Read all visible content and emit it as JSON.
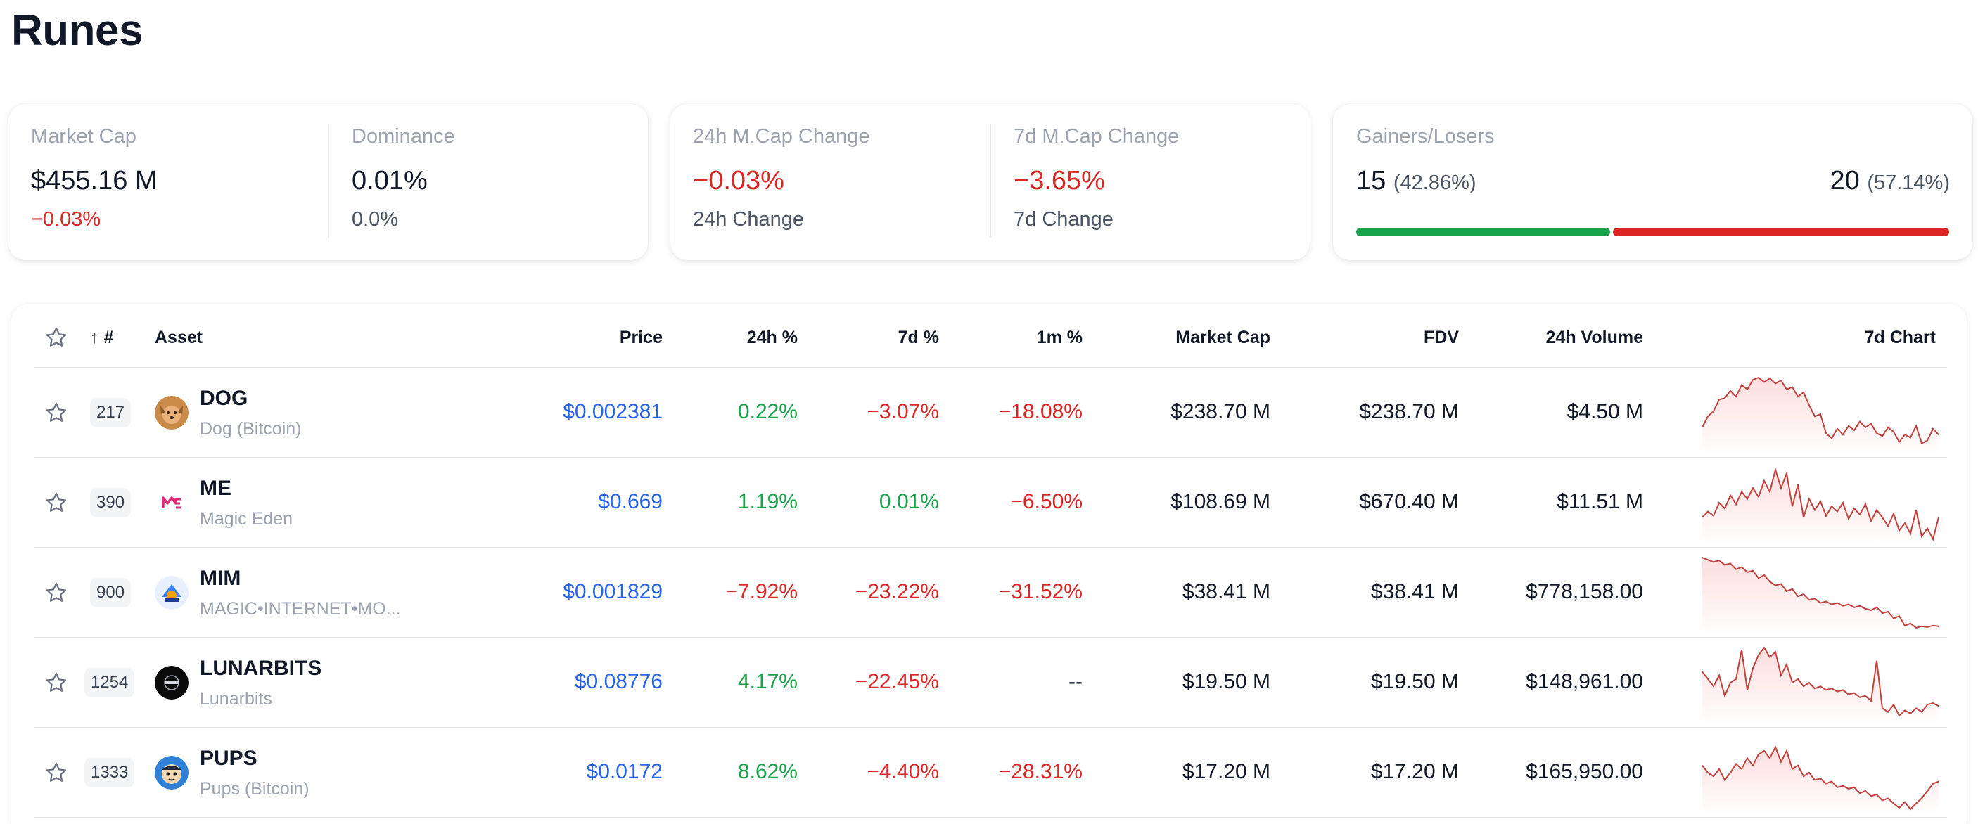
{
  "page": {
    "title": "Runes"
  },
  "stats": {
    "market_cap": {
      "label": "Market Cap",
      "value": "$455.16 M",
      "change": "−0.03%"
    },
    "dominance": {
      "label": "Dominance",
      "value": "0.01%",
      "change": "0.0%"
    },
    "change_24h": {
      "label": "24h M.Cap Change",
      "value": "−0.03%",
      "sub": "24h Change"
    },
    "change_7d": {
      "label": "7d M.Cap Change",
      "value": "−3.65%",
      "sub": "7d Change"
    },
    "gainers_losers": {
      "label": "Gainers/Losers",
      "gainers": "15",
      "gainers_pct": "(42.86%)",
      "losers": "20",
      "losers_pct": "(57.14%)",
      "gainers_fraction": 0.4286
    }
  },
  "table": {
    "headers": {
      "rank": "↑ #",
      "asset": "Asset",
      "price": "Price",
      "change_24h": "24h %",
      "change_7d": "7d %",
      "change_1m": "1m %",
      "market_cap": "Market Cap",
      "fdv": "FDV",
      "volume_24h": "24h Volume",
      "chart_7d": "7d Chart"
    },
    "rows": [
      {
        "rank": "217",
        "symbol": "DOG",
        "name": "Dog (Bitcoin)",
        "price": "$0.002381",
        "change_24h": "0.22%",
        "change_7d": "−3.07%",
        "change_1m": "−18.08%",
        "market_cap": "$238.70 M",
        "fdv": "$238.70 M",
        "volume_24h": "$4.50 M",
        "icon": "dog-icon",
        "spark": [
          0.7,
          0.55,
          0.48,
          0.32,
          0.3,
          0.2,
          0.28,
          0.12,
          0.18,
          0.05,
          0.02,
          0.08,
          0.03,
          0.1,
          0.06,
          0.18,
          0.15,
          0.28,
          0.22,
          0.4,
          0.55,
          0.52,
          0.78,
          0.85,
          0.72,
          0.8,
          0.68,
          0.74,
          0.62,
          0.7,
          0.65,
          0.78,
          0.82,
          0.7,
          0.76,
          0.9,
          0.8,
          0.84,
          0.68,
          0.92,
          0.88,
          0.72,
          0.8
        ]
      },
      {
        "rank": "390",
        "symbol": "ME",
        "name": "Magic Eden",
        "price": "$0.669",
        "change_24h": "1.19%",
        "change_7d": "0.01%",
        "change_1m": "−6.50%",
        "market_cap": "$108.69 M",
        "fdv": "$670.40 M",
        "volume_24h": "$11.51 M",
        "icon": "magic-eden-icon",
        "spark": [
          0.7,
          0.62,
          0.68,
          0.5,
          0.58,
          0.4,
          0.52,
          0.35,
          0.45,
          0.3,
          0.42,
          0.2,
          0.35,
          0.05,
          0.3,
          0.1,
          0.55,
          0.25,
          0.7,
          0.45,
          0.6,
          0.48,
          0.68,
          0.55,
          0.62,
          0.5,
          0.72,
          0.58,
          0.66,
          0.52,
          0.75,
          0.6,
          0.7,
          0.82,
          0.65,
          0.88,
          0.78,
          0.92,
          0.6,
          0.96,
          0.85,
          1.0,
          0.7
        ]
      },
      {
        "rank": "900",
        "symbol": "MIM",
        "name": "MAGIC•INTERNET•MO...",
        "price": "$0.001829",
        "change_24h": "−7.92%",
        "change_7d": "−23.22%",
        "change_1m": "−31.52%",
        "market_cap": "$38.41 M",
        "fdv": "$38.41 M",
        "volume_24h": "$778,158.00",
        "icon": "mim-icon",
        "spark": [
          0.02,
          0.05,
          0.08,
          0.06,
          0.12,
          0.1,
          0.18,
          0.15,
          0.22,
          0.2,
          0.3,
          0.26,
          0.35,
          0.4,
          0.38,
          0.48,
          0.45,
          0.55,
          0.52,
          0.6,
          0.58,
          0.64,
          0.62,
          0.66,
          0.64,
          0.68,
          0.66,
          0.7,
          0.68,
          0.72,
          0.74,
          0.7,
          0.78,
          0.76,
          0.85,
          0.82,
          0.95,
          0.92,
          0.98,
          0.96,
          0.97,
          0.95,
          0.96
        ]
      },
      {
        "rank": "1254",
        "symbol": "LUNARBITS",
        "name": "Lunarbits",
        "price": "$0.08776",
        "change_24h": "4.17%",
        "change_7d": "−22.45%",
        "change_1m": "--",
        "market_cap": "$19.50 M",
        "fdv": "$19.50 M",
        "volume_24h": "$148,961.00",
        "icon": "lunarbits-icon",
        "spark": [
          0.35,
          0.45,
          0.55,
          0.4,
          0.68,
          0.5,
          0.45,
          0.05,
          0.6,
          0.3,
          0.12,
          0.02,
          0.15,
          0.08,
          0.4,
          0.25,
          0.5,
          0.45,
          0.55,
          0.5,
          0.58,
          0.55,
          0.6,
          0.58,
          0.62,
          0.6,
          0.66,
          0.64,
          0.7,
          0.68,
          0.75,
          0.2,
          0.85,
          0.9,
          0.8,
          0.95,
          0.88,
          0.92,
          0.85,
          0.9,
          0.8,
          0.78,
          0.82
        ]
      },
      {
        "rank": "1333",
        "symbol": "PUPS",
        "name": "Pups (Bitcoin)",
        "price": "$0.0172",
        "change_24h": "8.62%",
        "change_7d": "−4.40%",
        "change_1m": "−28.31%",
        "market_cap": "$17.20 M",
        "fdv": "$17.20 M",
        "volume_24h": "$165,950.00",
        "icon": "pups-icon",
        "spark": [
          0.4,
          0.5,
          0.55,
          0.45,
          0.6,
          0.5,
          0.38,
          0.45,
          0.3,
          0.4,
          0.25,
          0.2,
          0.3,
          0.15,
          0.35,
          0.2,
          0.45,
          0.4,
          0.55,
          0.5,
          0.6,
          0.58,
          0.65,
          0.62,
          0.7,
          0.68,
          0.72,
          0.7,
          0.78,
          0.75,
          0.82,
          0.8,
          0.88,
          0.85,
          0.92,
          0.98,
          0.9,
          1.0,
          0.92,
          0.85,
          0.75,
          0.65,
          0.62
        ]
      }
    ]
  },
  "colors": {
    "positive": "#16a34a",
    "negative": "#dc2626",
    "price": "#2563eb",
    "spark_line": "#c2413d"
  }
}
